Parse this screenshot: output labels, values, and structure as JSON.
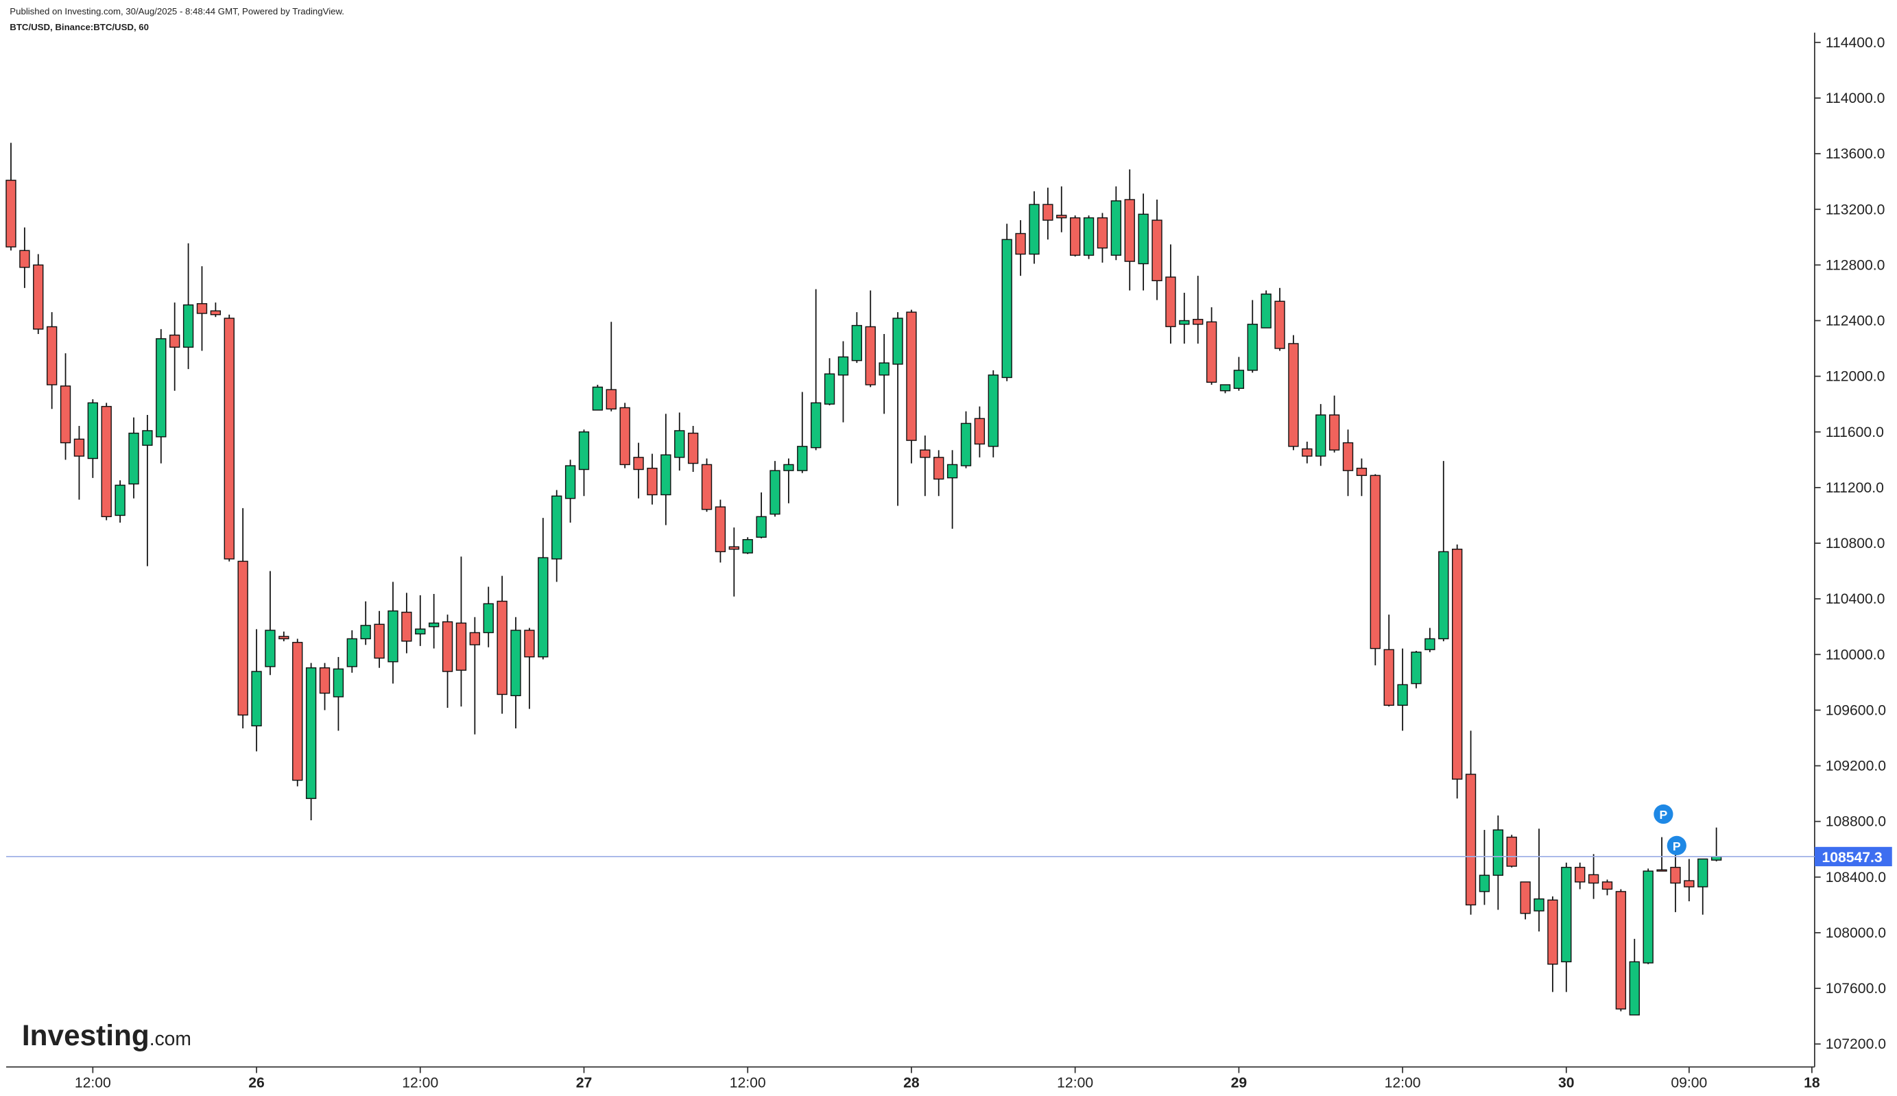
{
  "chart_data": {
    "type": "candlestick",
    "title": "Published on Investing.com, 30/Aug/2025 - 8:48:44 GMT, Powered by TradingView.",
    "subtitle": "BTC/USD, Binance:BTC/USD, 60",
    "logo": "Investing",
    "logo_suffix": ".com",
    "markers": [
      "P",
      "P"
    ],
    "up_color": "#12c27b",
    "down_color": "#f0635c",
    "open": [
      113409,
      112904,
      112800,
      112356,
      111930,
      111548,
      111409,
      111783,
      111000,
      111226,
      111504,
      111565,
      112296,
      112209,
      112522,
      112470,
      112417,
      110670,
      109487,
      109913,
      110130,
      110087,
      108965,
      109904,
      109696,
      109913,
      110113,
      110217,
      109948,
      110304,
      110148,
      110200,
      110235,
      110226,
      110157,
      110157,
      110383,
      109704,
      110174,
      109983,
      110687,
      111122,
      111330,
      111757,
      111904,
      111774,
      111417,
      111339,
      111148,
      111417,
      111591,
      111365,
      111061,
      110774,
      110730,
      110843,
      111009,
      111322,
      111322,
      111487,
      111800,
      112009,
      112113,
      112356,
      112009,
      112087,
      112461,
      111470,
      111417,
      111270,
      111357,
      111696,
      111496,
      111991,
      113026,
      112878,
      113235,
      113157,
      113139,
      112870,
      113139,
      112870,
      113270,
      112809,
      113122,
      112713,
      112374,
      112409,
      112391,
      111896,
      111913,
      112043,
      112348,
      112539,
      112235,
      111478,
      111426,
      111722,
      111522,
      111339,
      111287,
      110035,
      109635,
      109791,
      110035,
      110113,
      110757,
      109139,
      108296,
      108413,
      108687,
      108365,
      108157,
      108235,
      107791,
      108470,
      108417,
      108365,
      108296,
      107409,
      107783,
      108452,
      108470,
      108374,
      108330,
      108522
    ],
    "high": [
      113678,
      113070,
      112878,
      112461,
      112165,
      111643,
      111835,
      111809,
      111252,
      111704,
      111722,
      112339,
      112530,
      112956,
      112791,
      112530,
      112443,
      111052,
      110182,
      110600,
      110165,
      110113,
      109939,
      109939,
      109982,
      110174,
      110382,
      110313,
      110522,
      110443,
      110426,
      110435,
      110287,
      110704,
      110269,
      110487,
      110565,
      110269,
      110191,
      110982,
      111182,
      111400,
      111617,
      111939,
      112391,
      111809,
      111522,
      111443,
      111730,
      111739,
      111643,
      111409,
      111113,
      110913,
      110843,
      111165,
      111391,
      111409,
      111887,
      112626,
      112130,
      112252,
      112461,
      112617,
      112304,
      112461,
      112478,
      111574,
      111469,
      111469,
      111748,
      111783,
      112043,
      113096,
      113122,
      113330,
      113356,
      113365,
      113156,
      113156,
      113174,
      113365,
      113487,
      113313,
      113270,
      112948,
      112600,
      112722,
      112496,
      111939,
      112139,
      112548,
      112617,
      112635,
      112296,
      111530,
      111800,
      111861,
      111617,
      111409,
      111296,
      110287,
      110043,
      110026,
      110191,
      111391,
      110791,
      109452,
      108739,
      108843,
      108704,
      108365,
      108748,
      108261,
      108504,
      108504,
      108565,
      108382,
      108313,
      107956,
      108461,
      108687,
      108565,
      108530,
      108530,
      108756
    ],
    "low": [
      112904,
      112635,
      112304,
      111765,
      111400,
      111113,
      111269,
      110965,
      110948,
      111122,
      110635,
      111374,
      111896,
      112052,
      112183,
      112426,
      110669,
      109469,
      109304,
      109852,
      110095,
      109052,
      108808,
      109600,
      109452,
      109869,
      110069,
      109904,
      109791,
      110009,
      110061,
      110043,
      109617,
      109626,
      109426,
      110052,
      109574,
      109469,
      109609,
      109965,
      110522,
      110948,
      111139,
      111756,
      111748,
      111339,
      111122,
      111078,
      110930,
      111322,
      111313,
      111026,
      110661,
      110417,
      110722,
      110835,
      110991,
      111087,
      111304,
      111469,
      111791,
      111669,
      112096,
      111922,
      111730,
      111069,
      111374,
      111139,
      111139,
      110904,
      111339,
      111417,
      111417,
      111965,
      112722,
      112809,
      112983,
      113035,
      112861,
      112843,
      112817,
      112835,
      112617,
      112617,
      112548,
      112235,
      112235,
      112235,
      111939,
      111878,
      111896,
      112026,
      112348,
      112183,
      111469,
      111374,
      111356,
      111452,
      111139,
      111139,
      109922,
      109626,
      109452,
      109757,
      110017,
      110095,
      108965,
      108130,
      108200,
      108165,
      108469,
      108096,
      108009,
      107574,
      107574,
      108313,
      108243,
      108269,
      107435,
      107408,
      107774,
      108443,
      108148,
      108226,
      108130,
      108513
    ],
    "close": [
      112930,
      112783,
      112339,
      111939,
      111522,
      111426,
      111809,
      110991,
      111217,
      111591,
      111609,
      112270,
      112209,
      112513,
      112452,
      112443,
      110687,
      109565,
      109878,
      110174,
      110113,
      109096,
      109904,
      109722,
      109896,
      110113,
      110209,
      109974,
      110313,
      110096,
      110183,
      110226,
      109878,
      109887,
      110070,
      110365,
      109713,
      110174,
      109983,
      110696,
      111139,
      111357,
      111600,
      111922,
      111765,
      111365,
      111330,
      111148,
      111435,
      111609,
      111374,
      111043,
      110739,
      110757,
      110826,
      110991,
      111322,
      111365,
      111496,
      111809,
      112017,
      112139,
      112365,
      111939,
      112096,
      112417,
      111539,
      111417,
      111261,
      111365,
      111661,
      111513,
      112009,
      112983,
      112878,
      113235,
      113122,
      113139,
      112870,
      113139,
      112922,
      113261,
      112826,
      113165,
      112687,
      112357,
      112400,
      112374,
      111957,
      111939,
      112043,
      112374,
      112591,
      112200,
      111496,
      111426,
      111722,
      111470,
      111322,
      111287,
      110043,
      109635,
      109783,
      110017,
      110113,
      110739,
      109104,
      108200,
      108413,
      108739,
      108478,
      108139,
      108243,
      107774,
      108470,
      108365,
      108357,
      108313,
      107452,
      107791,
      108443,
      108443,
      108357,
      108330,
      108530,
      108547.3
    ],
    "last_price": 108547.3,
    "ylim": [
      107035,
      114470
    ],
    "yticks": [
      {
        "value": 107200,
        "label": "107200.0"
      },
      {
        "value": 107600,
        "label": "107600.0"
      },
      {
        "value": 108000,
        "label": "108000.0"
      },
      {
        "value": 108400,
        "label": "108400.0"
      },
      {
        "value": 108800,
        "label": "108800.0"
      },
      {
        "value": 109200,
        "label": "109200.0"
      },
      {
        "value": 109600,
        "label": "109600.0"
      },
      {
        "value": 110000,
        "label": "110000.0"
      },
      {
        "value": 110400,
        "label": "110400.0"
      },
      {
        "value": 110800,
        "label": "110800.0"
      },
      {
        "value": 111200,
        "label": "111200.0"
      },
      {
        "value": 111600,
        "label": "111600.0"
      },
      {
        "value": 112000,
        "label": "112000.0"
      },
      {
        "value": 112400,
        "label": "112400.0"
      },
      {
        "value": 112800,
        "label": "112800.0"
      },
      {
        "value": 113200,
        "label": "113200.0"
      },
      {
        "value": 113600,
        "label": "113600.0"
      },
      {
        "value": 114000,
        "label": "114000.0"
      },
      {
        "value": 114400,
        "label": "114400.0"
      }
    ],
    "xlim": [
      -0.35,
      132.2
    ],
    "xticks": [
      {
        "value": 6,
        "label": "12:00"
      },
      {
        "value": 18,
        "label": "26"
      },
      {
        "value": 30,
        "label": "12:00"
      },
      {
        "value": 42,
        "label": "27"
      },
      {
        "value": 54,
        "label": "12:00"
      },
      {
        "value": 66,
        "label": "28"
      },
      {
        "value": 78,
        "label": "12:00"
      },
      {
        "value": 90,
        "label": "29"
      },
      {
        "value": 102,
        "label": "12:00"
      },
      {
        "value": 114,
        "label": "30"
      },
      {
        "value": 123,
        "label": "09:00"
      },
      {
        "value": 132,
        "label": "18"
      }
    ]
  }
}
